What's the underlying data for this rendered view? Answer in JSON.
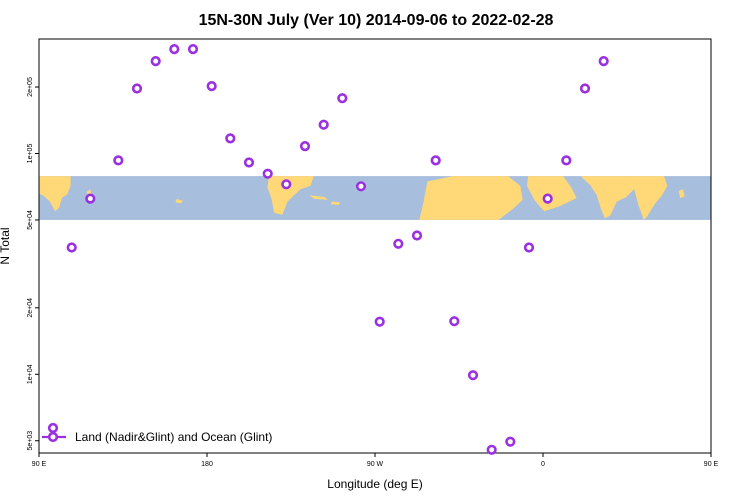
{
  "chart_data": {
    "type": "scatter",
    "title": "15N-30N July (Ver 10)   2014-09-06 to 2022-02-28",
    "xlabel": "Longitude (deg E)",
    "ylabel": "N Total",
    "x_scale": "linear",
    "y_scale": "log",
    "xlim": [
      90,
      450
    ],
    "ylim": [
      4400,
      330000
    ],
    "x_ticks": [
      {
        "value": 90,
        "label": "90 E"
      },
      {
        "value": 180,
        "label": "180"
      },
      {
        "value": 270,
        "label": "90 W"
      },
      {
        "value": 360,
        "label": "0"
      },
      {
        "value": 450,
        "label": "90 E"
      },
      {
        "value": 540,
        "label": "180"
      }
    ],
    "y_ticks": [
      {
        "value": 5000,
        "label": "5e+03"
      },
      {
        "value": 10000,
        "label": "1e+04"
      },
      {
        "value": 20000,
        "label": "2e+04"
      },
      {
        "value": 50000,
        "label": "5e+04"
      },
      {
        "value": 100000,
        "label": "1e+05"
      },
      {
        "value": 200000,
        "label": "2e+05"
      }
    ],
    "colors": {
      "points": "#9b30e0",
      "ocean": "#a8bedd",
      "land": "#ffd878"
    },
    "map_band": {
      "y_low": 50000,
      "y_high": 79000
    },
    "legend": {
      "placement": "bottom-left",
      "label": "Land (Nadir&Glint) and Ocean (Glint)"
    },
    "series": [
      {
        "name": "Land (Nadir&Glint) and Ocean (Glint)",
        "points": [
          {
            "x": 107.5,
            "y": 37500
          },
          {
            "x": 117.5,
            "y": 62500
          },
          {
            "x": 132.5,
            "y": 93000
          },
          {
            "x": 142.5,
            "y": 197000
          },
          {
            "x": 152.5,
            "y": 262000
          },
          {
            "x": 162.5,
            "y": 297000
          },
          {
            "x": 172.5,
            "y": 297000
          },
          {
            "x": 182.5,
            "y": 202000
          },
          {
            "x": 192.5,
            "y": 117000
          },
          {
            "x": 202.5,
            "y": 91000
          },
          {
            "x": 212.5,
            "y": 81000
          },
          {
            "x": 222.5,
            "y": 72500
          },
          {
            "x": 232.5,
            "y": 108000
          },
          {
            "x": 242.5,
            "y": 135000
          },
          {
            "x": 252.5,
            "y": 178000
          },
          {
            "x": 262.5,
            "y": 71000
          },
          {
            "x": 272.5,
            "y": 17300
          },
          {
            "x": 282.5,
            "y": 39000
          },
          {
            "x": 292.5,
            "y": 42500
          },
          {
            "x": 302.5,
            "y": 93000
          },
          {
            "x": 312.5,
            "y": 17400
          },
          {
            "x": 322.5,
            "y": 9900
          },
          {
            "x": 332.5,
            "y": 4550
          },
          {
            "x": 342.5,
            "y": 4950
          },
          {
            "x": 352.5,
            "y": 37500
          },
          {
            "x": 362.5,
            "y": 62500
          },
          {
            "x": 372.5,
            "y": 93000
          },
          {
            "x": 382.5,
            "y": 197000
          },
          {
            "x": 392.5,
            "y": 262000
          }
        ]
      }
    ]
  }
}
